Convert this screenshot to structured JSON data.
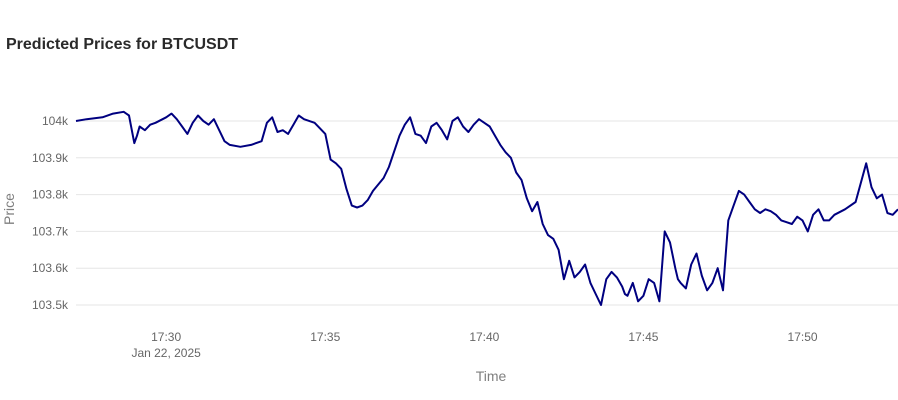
{
  "chart_data": {
    "type": "line",
    "title": "Predicted Prices for BTCUSDT",
    "xlabel": "Time",
    "ylabel": "Price",
    "date_label": "Jan 22, 2025",
    "x_ticks": [
      "17:30",
      "17:35",
      "17:40",
      "17:45",
      "17:50"
    ],
    "y_ticks": [
      {
        "value": 103500,
        "label": "103.5k"
      },
      {
        "value": 103600,
        "label": "103.6k"
      },
      {
        "value": 103700,
        "label": "103.7k"
      },
      {
        "value": 103800,
        "label": "103.8k"
      },
      {
        "value": 103900,
        "label": "103.9k"
      },
      {
        "value": 104000,
        "label": "104k"
      }
    ],
    "xlim": [
      "17:27:10",
      "17:53:00"
    ],
    "ylim": [
      103480,
      104060
    ],
    "grid": true,
    "line_color": "#000080",
    "series": [
      {
        "x": [
          "17:27:10",
          "17:27:30",
          "17:28:00",
          "17:28:20",
          "17:28:40",
          "17:28:50",
          "17:29:00",
          "17:29:05",
          "17:29:10",
          "17:29:20",
          "17:29:30",
          "17:29:40",
          "17:30:00",
          "17:30:10",
          "17:30:20",
          "17:30:30",
          "17:30:40",
          "17:30:50",
          "17:31:00",
          "17:31:10",
          "17:31:20",
          "17:31:30",
          "17:31:40",
          "17:31:50",
          "17:32:00",
          "17:32:20",
          "17:32:40",
          "17:33:00",
          "17:33:10",
          "17:33:20",
          "17:33:30",
          "17:33:40",
          "17:33:50",
          "17:34:00",
          "17:34:10",
          "17:34:20",
          "17:34:40",
          "17:35:00",
          "17:35:10",
          "17:35:20",
          "17:35:30",
          "17:35:40",
          "17:35:50",
          "17:36:00",
          "17:36:10",
          "17:36:20",
          "17:36:30",
          "17:36:50",
          "17:37:00",
          "17:37:20",
          "17:37:30",
          "17:37:40",
          "17:37:50",
          "17:38:00",
          "17:38:10",
          "17:38:20",
          "17:38:30",
          "17:38:40",
          "17:38:50",
          "17:39:00",
          "17:39:10",
          "17:39:20",
          "17:39:30",
          "17:39:40",
          "17:39:50",
          "17:40:00",
          "17:40:10",
          "17:40:20",
          "17:40:30",
          "17:40:40",
          "17:40:50",
          "17:41:00",
          "17:41:10",
          "17:41:20",
          "17:41:30",
          "17:41:40",
          "17:41:50",
          "17:42:00",
          "17:42:10",
          "17:42:20",
          "17:42:30",
          "17:42:40",
          "17:42:50",
          "17:43:00",
          "17:43:10",
          "17:43:20",
          "17:43:30",
          "17:43:40",
          "17:43:50",
          "17:44:00",
          "17:44:10",
          "17:44:20",
          "17:44:25",
          "17:44:30",
          "17:44:40",
          "17:44:50",
          "17:45:00",
          "17:45:10",
          "17:45:20",
          "17:45:30",
          "17:45:40",
          "17:45:50",
          "17:46:00",
          "17:46:05",
          "17:46:10",
          "17:46:20",
          "17:46:30",
          "17:46:40",
          "17:46:50",
          "17:47:00",
          "17:47:10",
          "17:47:20",
          "17:47:30",
          "17:47:40",
          "17:47:50",
          "17:48:00",
          "17:48:10",
          "17:48:20",
          "17:48:30",
          "17:48:40",
          "17:48:50",
          "17:49:00",
          "17:49:10",
          "17:49:20",
          "17:49:30",
          "17:49:40",
          "17:49:50",
          "17:50:00",
          "17:50:10",
          "17:50:20",
          "17:50:30",
          "17:50:40",
          "17:50:50",
          "17:51:00",
          "17:51:20",
          "17:51:40",
          "17:52:00",
          "17:52:10",
          "17:52:20",
          "17:52:30",
          "17:52:40",
          "17:52:50",
          "17:53:00"
        ],
        "y": [
          104000,
          104005,
          104010,
          104020,
          104025,
          104015,
          103940,
          103960,
          103985,
          103975,
          103990,
          103995,
          104010,
          104020,
          104005,
          103985,
          103965,
          103995,
          104015,
          104000,
          103990,
          104005,
          103975,
          103945,
          103935,
          103930,
          103935,
          103945,
          103995,
          104010,
          103970,
          103975,
          103965,
          103990,
          104015,
          104005,
          103995,
          103965,
          103895,
          103885,
          103870,
          103815,
          103770,
          103765,
          103770,
          103785,
          103810,
          103845,
          103875,
          103960,
          103990,
          104010,
          103965,
          103960,
          103940,
          103985,
          103995,
          103975,
          103950,
          104000,
          104010,
          103985,
          103970,
          103990,
          104005,
          103995,
          103985,
          103960,
          103935,
          103915,
          103900,
          103860,
          103840,
          103790,
          103755,
          103780,
          103720,
          103690,
          103680,
          103650,
          103570,
          103620,
          103575,
          103590,
          103610,
          103560,
          103530,
          103500,
          103570,
          103590,
          103575,
          103550,
          103530,
          103525,
          103560,
          103510,
          103525,
          103570,
          103560,
          103510,
          103700,
          103670,
          103600,
          103570,
          103560,
          103545,
          103610,
          103640,
          103580,
          103540,
          103560,
          103600,
          103540,
          103730,
          103770,
          103810,
          103800,
          103780,
          103760,
          103750,
          103760,
          103755,
          103745,
          103730,
          103725,
          103720,
          103740,
          103730,
          103700,
          103745,
          103760,
          103730,
          103730,
          103745,
          103760,
          103780,
          103885,
          103820,
          103790,
          103800,
          103750,
          103745,
          103760
        ]
      }
    ]
  }
}
